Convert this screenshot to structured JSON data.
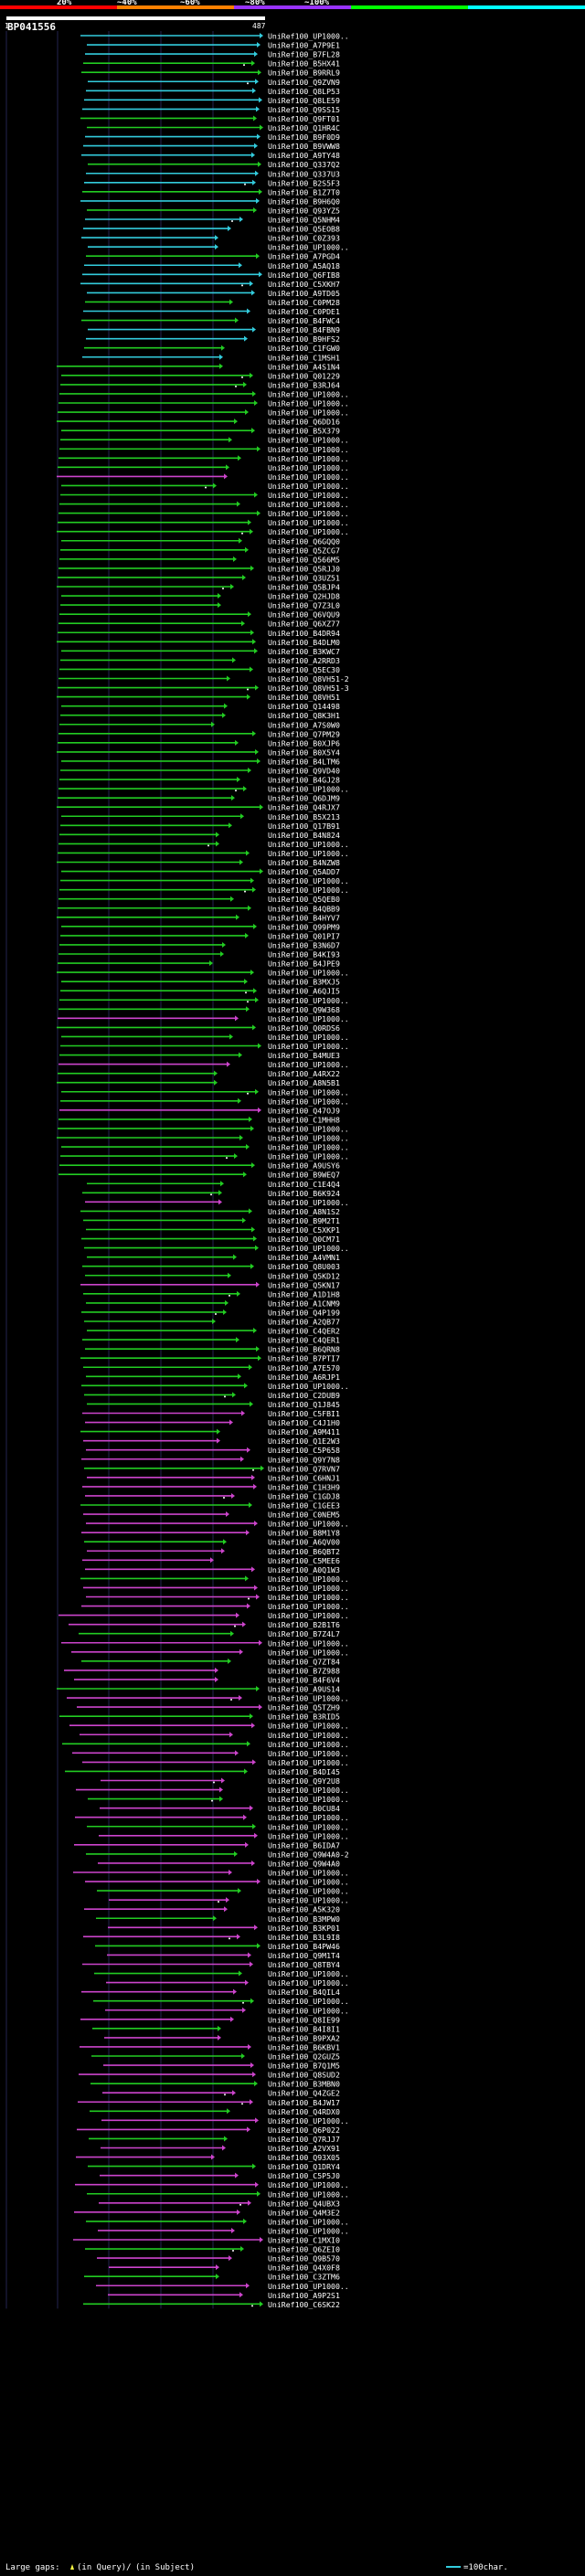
{
  "chart_data": {
    "type": "alignment",
    "title": "BP041556",
    "scale_labels": [
      "20%",
      "~40%",
      "~60%",
      "~80%",
      "~100%"
    ],
    "scale_colors": [
      "#ff0000",
      "#ff8000",
      "#9933ff",
      "#00ff00",
      "#00ffff"
    ],
    "ruler": {
      "start": "1",
      "end": "487",
      "min": 1,
      "max": 487
    },
    "identity_colors": {
      "cyan": "#33ccdd",
      "green": "#22cc22",
      "magenta": "#cc44cc"
    },
    "hit_ids": [
      "UniRef100_UP1000..",
      "UniRef100_A7P9E1",
      "UniRef100_B7FL28",
      "UniRef100_B5HX41",
      "UniRef100_B9RRL9",
      "UniRef100_Q9ZVN9",
      "UniRef100_Q8LP53",
      "UniRef100_Q8LE59",
      "UniRef100_Q9SS15",
      "UniRef100_Q9FT01",
      "UniRef100_Q1HR4C",
      "UniRef100_B9F0D9",
      "UniRef100_B9VWW8",
      "UniRef100_A9TY48",
      "UniRef100_Q337Q2",
      "UniRef100_Q337U3",
      "UniRef100_B2S5F3",
      "UniRef100_B1Z7T0",
      "UniRef100_B9H6Q0",
      "UniRef100_Q93YZ5",
      "UniRef100_Q5NHM4",
      "UniRef100_Q5EOB8",
      "UniRef100_C0Z393",
      "UniRef100_UP1000..",
      "UniRef100_A7PGD4",
      "UniRef100_A5AQ18",
      "UniRef100_Q6FIB8",
      "UniRef100_C5XKH7",
      "UniRef100_A9TD05",
      "UniRef100_C0PM28",
      "UniRef100_C0PDE1",
      "UniRef100_B4FWC4",
      "UniRef100_B4FBN9",
      "UniRef100_B9HFS2",
      "UniRef100_C1FGW0",
      "UniRef100_C1MSH1",
      "UniRef100_A4S1N4",
      "UniRef100_Q01229",
      "UniRef100_B3RJ64",
      "UniRef100_UP1000..",
      "UniRef100_UP1000..",
      "UniRef100_UP1000..",
      "UniRef100_Q6DD16",
      "UniRef100_B5X379",
      "UniRef100_UP1000..",
      "UniRef100_UP1000..",
      "UniRef100_UP1000..",
      "UniRef100_UP1000..",
      "UniRef100_UP1000..",
      "UniRef100_UP1000..",
      "UniRef100_UP1000..",
      "UniRef100_UP1000..",
      "UniRef100_UP1000..",
      "UniRef100_UP1000..",
      "UniRef100_UP1000..",
      "UniRef100_Q6GQQ0",
      "UniRef100_Q5ZCG7",
      "UniRef100_Q566M5",
      "UniRef100_Q5RJJ0",
      "UniRef100_Q3UZ51",
      "UniRef100_Q5BJP4",
      "UniRef100_Q2HJD8",
      "UniRef100_Q7Z3L0",
      "UniRef100_Q6VQU9",
      "UniRef100_Q6XZ77",
      "UniRef100_B4DR94",
      "UniRef100_B4DLM0",
      "UniRef100_B3KWC7",
      "UniRef100_A2RRD3",
      "UniRef100_Q5EC30",
      "UniRef100_Q8VH51-2",
      "UniRef100_Q8VH51-3",
      "UniRef100_Q8VH51",
      "UniRef100_Q14498",
      "UniRef100_Q8K3H1",
      "UniRef100_A7S0W0",
      "UniRef100_Q7PM29",
      "UniRef100_B0XJP6",
      "UniRef100_B0X5Y4",
      "UniRef100_B4LTM6",
      "UniRef100_Q9VD40",
      "UniRef100_B4GJ28",
      "UniRef100_UP1000..",
      "UniRef100_Q6DJM9",
      "UniRef100_Q4RJX7",
      "UniRef100_B5X213",
      "UniRef100_Q17B91",
      "UniRef100_B4N824",
      "UniRef100_UP1000..",
      "UniRef100_UP1000..",
      "UniRef100_B4NZW8",
      "UniRef100_Q5ADD7",
      "UniRef100_UP1000..",
      "UniRef100_UP1000..",
      "UniRef100_Q5QEB0",
      "UniRef100_B4QBB9",
      "UniRef100_B4HYV7",
      "UniRef100_Q99PM9",
      "UniRef100_Q01PI7",
      "UniRef100_B3N6D7",
      "UniRef100_B4KI93",
      "UniRef100_B4JPE9",
      "UniRef100_UP1000..",
      "UniRef100_B3MXJ5",
      "UniRef100_A6QJI5",
      "UniRef100_UP1000..",
      "UniRef100_Q9W368",
      "UniRef100_UP1000..",
      "UniRef100_Q0RDS6",
      "UniRef100_UP1000..",
      "UniRef100_UP1000..",
      "UniRef100_B4MUE3",
      "UniRef100_UP1000..",
      "UniRef100_A4RX22",
      "UniRef100_A8N5B1",
      "UniRef100_UP1000..",
      "UniRef100_UP1000..",
      "UniRef100_Q47OJ9",
      "UniRef100_C1MHH8",
      "UniRef100_UP1000..",
      "UniRef100_UP1000..",
      "UniRef100_UP1000..",
      "UniRef100_UP1000..",
      "UniRef100_A9USY6",
      "UniRef100_B9WEQ7",
      "UniRef100_C1E4Q4",
      "UniRef100_B6K924",
      "UniRef100_UP1000..",
      "UniRef100_A8N1S2",
      "UniRef100_B9M2T1",
      "UniRef100_C5XKP1",
      "UniRef100_Q0CM71",
      "UniRef100_UP1000..",
      "UniRef100_A4VMN1",
      "UniRef100_Q8U003",
      "UniRef100_Q5KD12",
      "UniRef100_Q5KN17",
      "UniRef100_A1D1H8",
      "UniRef100_A1CNM9",
      "UniRef100_Q4P199",
      "UniRef100_A2QB77",
      "UniRef100_C4QER2",
      "UniRef100_C4QER1",
      "UniRef100_B6QRN8",
      "UniRef100_B7PTI7",
      "UniRef100_A7E570",
      "UniRef100_A6RJP1",
      "UniRef100_UP1000..",
      "UniRef100_C2DUB9",
      "UniRef100_Q1J845",
      "UniRef100_C5FBI1",
      "UniRef100_C4J1H0",
      "UniRef100_A9M411",
      "UniRef100_Q1E2W3",
      "UniRef100_C5P658",
      "UniRef100_Q9Y7N8",
      "UniRef100_Q7RVN7",
      "UniRef100_C6HNJ1",
      "UniRef100_C1H3H9",
      "UniRef100_C1GDJ8",
      "UniRef100_C1GEE3",
      "UniRef100_C0NEM5",
      "UniRef100_UP1000..",
      "UniRef100_B8M1Y8",
      "UniRef100_A6QV00",
      "UniRef100_B6QBT2",
      "UniRef100_C5MEE6",
      "UniRef100_A0Q1W3",
      "UniRef100_UP1000..",
      "UniRef100_UP1000..",
      "UniRef100_UP1000..",
      "UniRef100_UP1000..",
      "UniRef100_UP1000..",
      "UniRef100_B2B1T6",
      "UniRef100_B7Z4L7",
      "UniRef100_UP1000..",
      "UniRef100_UP1000..",
      "UniRef100_Q7ZT84",
      "UniRef100_B7Z988",
      "UniRef100_B4F6V4",
      "UniRef100_A9US14",
      "UniRef100_UP1000..",
      "UniRef100_Q5TZH9",
      "UniRef100_B3RID5",
      "UniRef100_UP1000..",
      "UniRef100_UP1000..",
      "UniRef100_UP1000..",
      "UniRef100_UP1000..",
      "UniRef100_UP1000..",
      "UniRef100_B4DI45",
      "UniRef100_Q9Y2U8",
      "UniRef100_UP1000..",
      "UniRef100_UP1000..",
      "UniRef100_B0CU84",
      "UniRef100_UP1000..",
      "UniRef100_UP1000..",
      "UniRef100_UP1000..",
      "UniRef100_B6IDA7",
      "UniRef100_Q9W4A0-2",
      "UniRef100_Q9W4A0",
      "UniRef100_UP1000..",
      "UniRef100_UP1000..",
      "UniRef100_UP1000..",
      "UniRef100_UP1000..",
      "UniRef100_A5K320",
      "UniRef100_B3MPW0",
      "UniRef100_B3KP01",
      "UniRef100_B3L9I8",
      "UniRef100_B4PW46",
      "UniRef100_Q9M1T4",
      "UniRef100_Q8TBY4",
      "UniRef100_UP1000..",
      "UniRef100_UP1000..",
      "UniRef100_B4QIL4",
      "UniRef100_UP1000..",
      "UniRef100_UP1000..",
      "UniRef100_Q8IE99",
      "UniRef100_B4I8I1",
      "UniRef100_B9PXA2",
      "UniRef100_B6KBV1",
      "UniRef100_Q2GUZ5",
      "UniRef100_B7Q1M5",
      "UniRef100_Q8SUD2",
      "UniRef100_B3MBN0",
      "UniRef100_Q4ZGE2",
      "UniRef100_B4JW17",
      "UniRef100_Q4RDX0",
      "UniRef100_UP1000..",
      "UniRef100_Q6P022",
      "UniRef100_Q7RJJ7",
      "UniRef100_A2VX91",
      "UniRef100_Q93X05",
      "UniRef100_Q1DRY4",
      "UniRef100_C5P5J0",
      "UniRef100_UP1000..",
      "UniRef100_UP1000..",
      "UniRef100_Q4UBX3",
      "UniRef100_Q4M3E2",
      "UniRef100_UP1000..",
      "UniRef100_UP1000..",
      "UniRef100_C1MXI0",
      "UniRef100_Q6ZEI0",
      "UniRef100_Q9B570",
      "UniRef100_Q4X0F8",
      "UniRef100_C3ZTM6",
      "UniRef100_UP1000..",
      "UniRef100_A9P2S1",
      "UniRef100_C6SK22"
    ],
    "footer": {
      "large_gaps": "Large gaps:",
      "gap_desc": "(in Query)/",
      "gap_desc2": "(in Subject)",
      "scale_desc": "=100char."
    }
  }
}
